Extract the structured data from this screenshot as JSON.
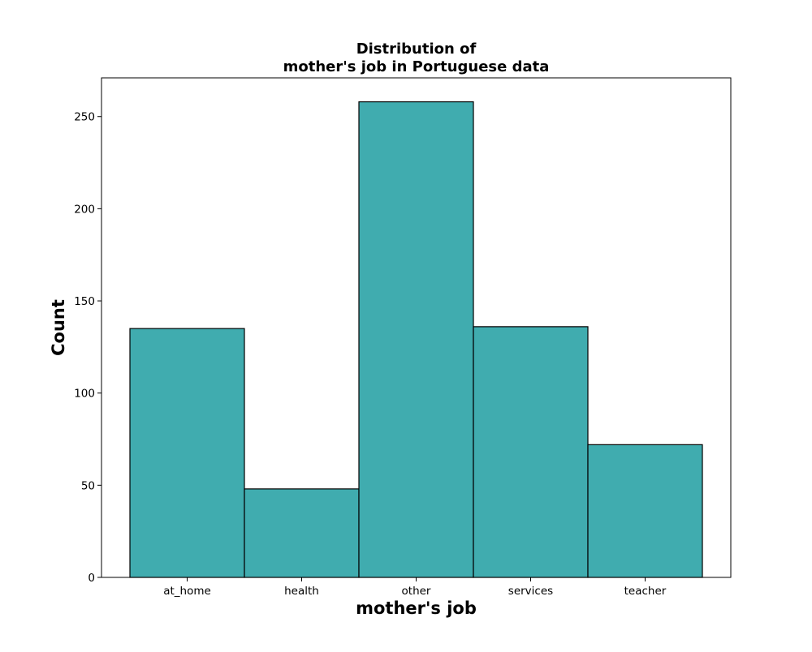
{
  "chart_data": {
    "type": "bar",
    "title_lines": [
      "Distribution of",
      "mother's job in Portuguese data"
    ],
    "xlabel": "mother's job",
    "ylabel": "Count",
    "categories": [
      "at_home",
      "health",
      "other",
      "services",
      "teacher"
    ],
    "values": [
      135,
      48,
      258,
      136,
      72
    ],
    "ylim": [
      0,
      271
    ],
    "yticks": [
      0,
      50,
      100,
      150,
      200,
      250
    ],
    "grid": false,
    "legend": "none",
    "bar_color": "#40acaf",
    "edge_color": "#000000"
  }
}
